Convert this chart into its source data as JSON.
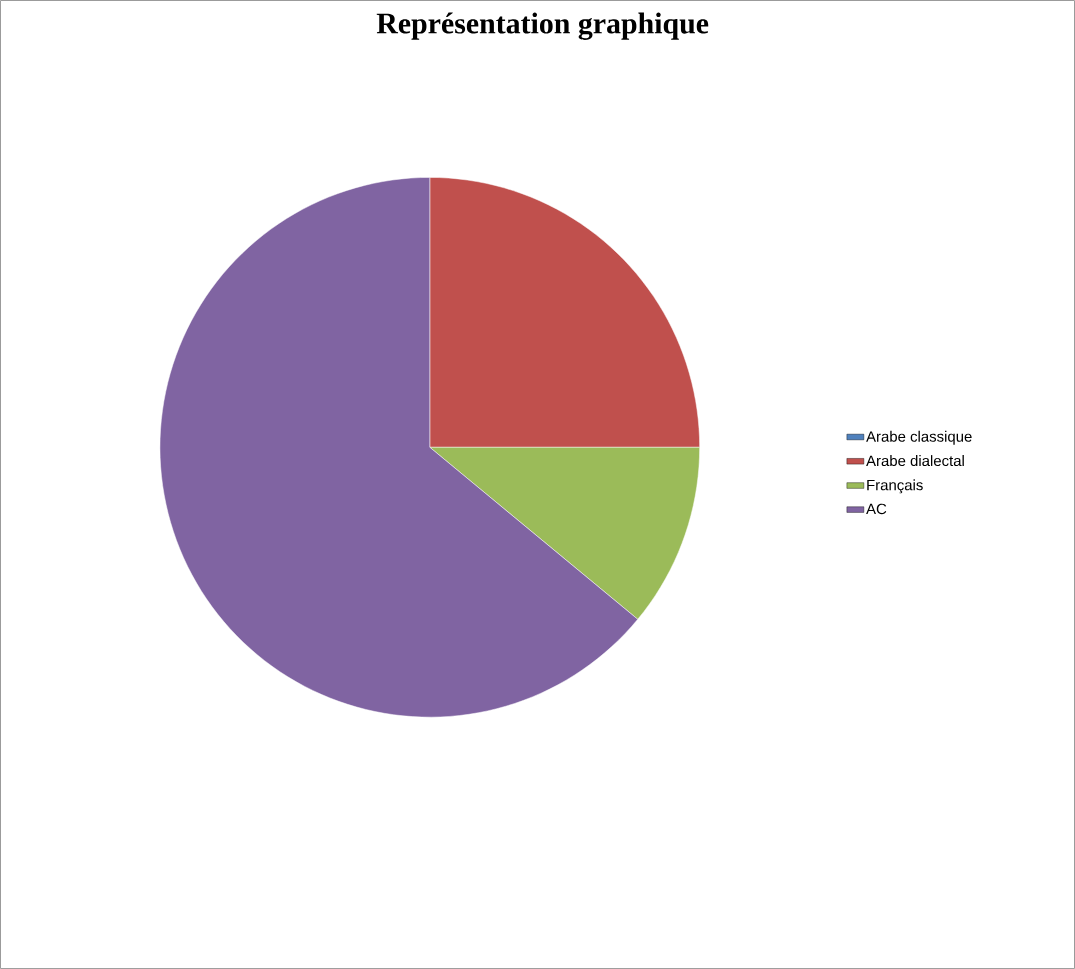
{
  "chart_data": {
    "type": "pie",
    "title": "Représentation graphique",
    "categories": [
      "Arabe classique",
      "Arabe dialectal",
      "Français",
      "AC"
    ],
    "values": [
      0,
      25,
      11,
      64
    ],
    "colors": [
      "#4f81bd",
      "#c0504d",
      "#9bbb59",
      "#8064a2"
    ],
    "legend": "right"
  }
}
